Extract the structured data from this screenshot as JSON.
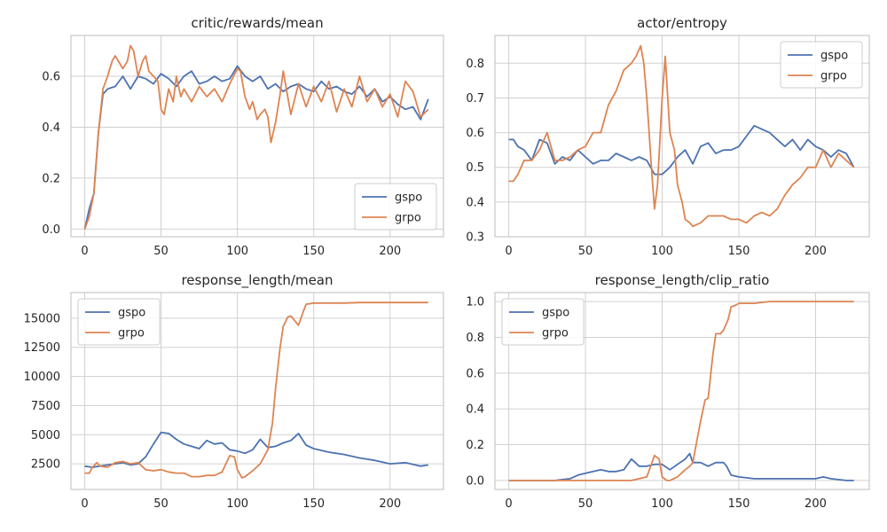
{
  "colors": {
    "gspo": "#4c72b0",
    "grpo": "#dd8452"
  },
  "chart_data": [
    {
      "type": "line",
      "title": "critic/rewards/mean",
      "xlim": [
        -9,
        235
      ],
      "ylim": [
        -0.03,
        0.76
      ],
      "xticks": [
        0,
        50,
        100,
        150,
        200
      ],
      "yticks": [
        0.0,
        0.2,
        0.4,
        0.6
      ],
      "ytick_labels": [
        "0.0",
        "0.2",
        "0.4",
        "0.6"
      ],
      "legend": "lower-right",
      "series": [
        {
          "name": "gspo",
          "color_key": "gspo",
          "x": [
            0,
            3,
            6,
            9,
            12,
            15,
            20,
            25,
            30,
            35,
            40,
            45,
            50,
            55,
            60,
            65,
            70,
            75,
            80,
            85,
            90,
            95,
            100,
            105,
            110,
            115,
            120,
            125,
            130,
            135,
            140,
            145,
            150,
            155,
            160,
            165,
            170,
            175,
            180,
            185,
            190,
            195,
            200,
            205,
            210,
            215,
            220,
            225
          ],
          "y": [
            0.0,
            0.08,
            0.14,
            0.38,
            0.53,
            0.55,
            0.56,
            0.6,
            0.55,
            0.6,
            0.59,
            0.57,
            0.61,
            0.59,
            0.56,
            0.6,
            0.62,
            0.57,
            0.58,
            0.6,
            0.58,
            0.59,
            0.64,
            0.6,
            0.58,
            0.6,
            0.55,
            0.57,
            0.54,
            0.56,
            0.57,
            0.55,
            0.54,
            0.58,
            0.55,
            0.56,
            0.54,
            0.53,
            0.56,
            0.52,
            0.55,
            0.5,
            0.52,
            0.49,
            0.47,
            0.48,
            0.43,
            0.51
          ]
        },
        {
          "name": "grpo",
          "color_key": "grpo",
          "x": [
            0,
            3,
            6,
            9,
            12,
            15,
            18,
            20,
            25,
            28,
            30,
            32,
            35,
            38,
            40,
            42,
            45,
            48,
            50,
            52,
            55,
            58,
            60,
            63,
            65,
            70,
            75,
            80,
            85,
            90,
            95,
            100,
            102,
            105,
            108,
            110,
            113,
            115,
            118,
            120,
            122,
            125,
            128,
            130,
            135,
            140,
            145,
            150,
            155,
            160,
            165,
            170,
            175,
            180,
            185,
            190,
            195,
            200,
            205,
            210,
            215,
            220,
            225
          ],
          "y": [
            0.0,
            0.05,
            0.14,
            0.38,
            0.55,
            0.6,
            0.66,
            0.68,
            0.63,
            0.66,
            0.72,
            0.7,
            0.6,
            0.66,
            0.68,
            0.62,
            0.6,
            0.58,
            0.47,
            0.45,
            0.55,
            0.5,
            0.6,
            0.52,
            0.55,
            0.5,
            0.56,
            0.52,
            0.55,
            0.5,
            0.57,
            0.63,
            0.62,
            0.52,
            0.47,
            0.5,
            0.43,
            0.45,
            0.47,
            0.44,
            0.34,
            0.42,
            0.53,
            0.62,
            0.45,
            0.57,
            0.48,
            0.56,
            0.5,
            0.58,
            0.46,
            0.55,
            0.48,
            0.6,
            0.5,
            0.55,
            0.48,
            0.53,
            0.44,
            0.58,
            0.54,
            0.44,
            0.47
          ]
        }
      ]
    },
    {
      "type": "line",
      "title": "actor/entropy",
      "xlim": [
        -9,
        235
      ],
      "ylim": [
        0.3,
        0.88
      ],
      "xticks": [
        0,
        50,
        100,
        150,
        200
      ],
      "yticks": [
        0.3,
        0.4,
        0.5,
        0.6,
        0.7,
        0.8
      ],
      "ytick_labels": [
        "0.3",
        "0.4",
        "0.5",
        "0.6",
        "0.7",
        "0.8"
      ],
      "legend": "top-right",
      "series": [
        {
          "name": "gspo",
          "color_key": "gspo",
          "x": [
            0,
            3,
            6,
            10,
            15,
            20,
            25,
            30,
            35,
            40,
            45,
            50,
            55,
            60,
            65,
            70,
            75,
            80,
            85,
            90,
            95,
            100,
            105,
            110,
            115,
            120,
            125,
            130,
            135,
            140,
            145,
            150,
            155,
            160,
            165,
            170,
            175,
            180,
            185,
            190,
            195,
            200,
            205,
            210,
            215,
            220,
            225
          ],
          "y": [
            0.58,
            0.58,
            0.56,
            0.55,
            0.52,
            0.58,
            0.57,
            0.51,
            0.53,
            0.52,
            0.55,
            0.53,
            0.51,
            0.52,
            0.52,
            0.54,
            0.53,
            0.52,
            0.53,
            0.52,
            0.48,
            0.48,
            0.5,
            0.53,
            0.55,
            0.51,
            0.56,
            0.57,
            0.54,
            0.55,
            0.55,
            0.56,
            0.59,
            0.62,
            0.61,
            0.6,
            0.58,
            0.56,
            0.58,
            0.55,
            0.58,
            0.56,
            0.55,
            0.53,
            0.55,
            0.54,
            0.5
          ]
        },
        {
          "name": "grpo",
          "color_key": "grpo",
          "x": [
            0,
            3,
            6,
            10,
            15,
            20,
            25,
            30,
            35,
            40,
            45,
            50,
            55,
            60,
            65,
            70,
            75,
            80,
            83,
            86,
            88,
            90,
            93,
            95,
            97,
            100,
            102,
            105,
            108,
            110,
            113,
            115,
            118,
            120,
            125,
            130,
            135,
            140,
            145,
            150,
            155,
            160,
            165,
            170,
            175,
            180,
            185,
            190,
            195,
            200,
            205,
            210,
            215,
            220,
            225
          ],
          "y": [
            0.46,
            0.46,
            0.48,
            0.52,
            0.52,
            0.55,
            0.6,
            0.52,
            0.52,
            0.53,
            0.55,
            0.56,
            0.6,
            0.6,
            0.68,
            0.72,
            0.78,
            0.8,
            0.82,
            0.85,
            0.8,
            0.7,
            0.5,
            0.38,
            0.45,
            0.7,
            0.82,
            0.6,
            0.55,
            0.45,
            0.4,
            0.35,
            0.34,
            0.33,
            0.34,
            0.36,
            0.36,
            0.36,
            0.35,
            0.35,
            0.34,
            0.36,
            0.37,
            0.36,
            0.38,
            0.42,
            0.45,
            0.47,
            0.5,
            0.5,
            0.55,
            0.5,
            0.54,
            0.52,
            0.5
          ]
        }
      ]
    },
    {
      "type": "line",
      "title": "response_length/mean",
      "xlim": [
        -9,
        235
      ],
      "ylim": [
        300,
        17200
      ],
      "xticks": [
        0,
        50,
        100,
        150,
        200
      ],
      "yticks": [
        2500,
        5000,
        7500,
        10000,
        12500,
        15000
      ],
      "ytick_labels": [
        "2500",
        "5000",
        "7500",
        "10000",
        "12500",
        "15000"
      ],
      "legend": "top-left",
      "series": [
        {
          "name": "gspo",
          "color_key": "gspo",
          "x": [
            0,
            5,
            10,
            15,
            20,
            25,
            30,
            35,
            40,
            45,
            50,
            55,
            60,
            65,
            70,
            75,
            80,
            85,
            90,
            95,
            100,
            105,
            110,
            115,
            120,
            125,
            130,
            135,
            140,
            145,
            150,
            160,
            170,
            180,
            190,
            200,
            210,
            220,
            225
          ],
          "y": [
            2300,
            2200,
            2300,
            2400,
            2500,
            2600,
            2400,
            2500,
            3100,
            4200,
            5200,
            5100,
            4600,
            4200,
            4000,
            3800,
            4500,
            4200,
            4300,
            3700,
            3600,
            3400,
            3700,
            4600,
            3900,
            4000,
            4300,
            4500,
            5100,
            4100,
            3800,
            3500,
            3300,
            3000,
            2800,
            2500,
            2600,
            2300,
            2400
          ]
        },
        {
          "name": "grpo",
          "color_key": "grpo",
          "x": [
            0,
            3,
            5,
            8,
            10,
            15,
            20,
            25,
            30,
            35,
            40,
            45,
            50,
            55,
            60,
            65,
            70,
            75,
            80,
            85,
            90,
            95,
            98,
            100,
            103,
            105,
            110,
            115,
            120,
            123,
            125,
            128,
            130,
            133,
            135,
            140,
            143,
            145,
            150,
            160,
            170,
            180,
            190,
            200,
            210,
            220,
            225
          ],
          "y": [
            1700,
            1700,
            2200,
            2600,
            2300,
            2200,
            2600,
            2700,
            2500,
            2600,
            2000,
            1900,
            2000,
            1800,
            1700,
            1700,
            1400,
            1400,
            1500,
            1500,
            1800,
            3200,
            3100,
            2000,
            1300,
            1400,
            1900,
            2500,
            3700,
            6000,
            9000,
            12500,
            14300,
            15100,
            15200,
            14400,
            15500,
            16200,
            16300,
            16300,
            16300,
            16350,
            16350,
            16350,
            16350,
            16350,
            16350
          ]
        }
      ]
    },
    {
      "type": "line",
      "title": "response_length/clip_ratio",
      "xlim": [
        -9,
        235
      ],
      "ylim": [
        -0.05,
        1.05
      ],
      "xticks": [
        0,
        50,
        100,
        150,
        200
      ],
      "yticks": [
        0.0,
        0.2,
        0.4,
        0.6,
        0.8,
        1.0
      ],
      "ytick_labels": [
        "0.0",
        "0.2",
        "0.4",
        "0.6",
        "0.8",
        "1.0"
      ],
      "legend": "top-left",
      "series": [
        {
          "name": "gspo",
          "color_key": "gspo",
          "x": [
            0,
            10,
            20,
            30,
            40,
            45,
            50,
            55,
            60,
            65,
            70,
            75,
            80,
            85,
            90,
            95,
            100,
            105,
            110,
            115,
            118,
            120,
            125,
            130,
            135,
            140,
            142,
            145,
            150,
            160,
            170,
            180,
            190,
            200,
            205,
            210,
            220,
            225
          ],
          "y": [
            0.0,
            0.0,
            0.0,
            0.0,
            0.01,
            0.03,
            0.04,
            0.05,
            0.06,
            0.05,
            0.05,
            0.06,
            0.12,
            0.08,
            0.08,
            0.09,
            0.09,
            0.06,
            0.09,
            0.12,
            0.15,
            0.1,
            0.1,
            0.08,
            0.1,
            0.1,
            0.08,
            0.03,
            0.02,
            0.01,
            0.01,
            0.01,
            0.01,
            0.01,
            0.02,
            0.01,
            0.0,
            0.0
          ]
        },
        {
          "name": "grpo",
          "color_key": "grpo",
          "x": [
            0,
            20,
            40,
            60,
            80,
            90,
            95,
            98,
            100,
            103,
            105,
            110,
            115,
            118,
            120,
            123,
            125,
            128,
            130,
            133,
            135,
            138,
            140,
            143,
            145,
            148,
            150,
            160,
            170,
            180,
            190,
            200,
            210,
            220,
            225
          ],
          "y": [
            0.0,
            0.0,
            0.0,
            0.0,
            0.0,
            0.02,
            0.14,
            0.12,
            0.02,
            0.0,
            0.0,
            0.02,
            0.06,
            0.08,
            0.1,
            0.24,
            0.33,
            0.45,
            0.46,
            0.7,
            0.82,
            0.82,
            0.84,
            0.9,
            0.97,
            0.98,
            0.99,
            0.99,
            1.0,
            1.0,
            1.0,
            1.0,
            1.0,
            1.0,
            1.0
          ]
        }
      ]
    }
  ]
}
